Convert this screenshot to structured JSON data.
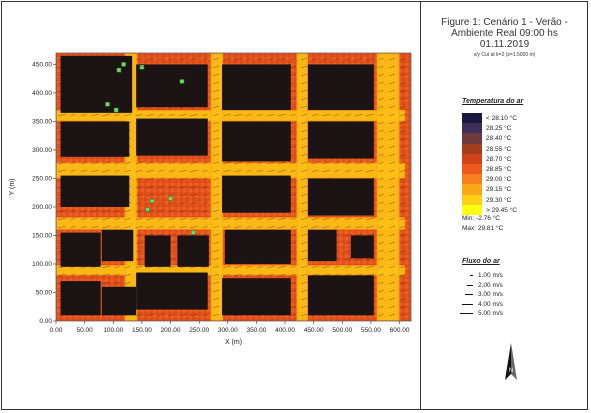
{
  "figure": {
    "title_lines": [
      "Figure 1: Cenário 1 - Verão -",
      "Ambiente Real 09:00 hs",
      "01.11.2019"
    ],
    "subtitle": "x/y Cut at k=2 (z=1.5000 m)"
  },
  "legend_temperature": {
    "title": "Temperatura do ar",
    "entries": [
      {
        "label": "< 28.10 °C",
        "color": "#1a1a40"
      },
      {
        "label": "28.25 °C",
        "color": "#3e2f5a"
      },
      {
        "label": "28.40 °C",
        "color": "#6e3a3e"
      },
      {
        "label": "28.55 °C",
        "color": "#a43c1e"
      },
      {
        "label": "28.70 °C",
        "color": "#d2431a"
      },
      {
        "label": "28.85 °C",
        "color": "#ee5a1e"
      },
      {
        "label": "29.00 °C",
        "color": "#f8801c"
      },
      {
        "label": "29.15 °C",
        "color": "#fba818"
      },
      {
        "label": "29.30 °C",
        "color": "#fdd014"
      },
      {
        "label": "> 29.45 °C",
        "color": "#ffff10"
      }
    ],
    "min_label": "Min: -2.76 °C",
    "max_label": "Max: 29.81 °C"
  },
  "legend_wind": {
    "title": "Fluxo do ar",
    "entries": [
      "1.00 m/s",
      "2.00 m/s",
      "3.00 m/s",
      "4.00 m/s",
      "5.00 m/s"
    ]
  },
  "compass": {
    "label": "N",
    "icon": "north-arrow-icon"
  },
  "chart_data": {
    "type": "heatmap",
    "xlabel": "X (m)",
    "ylabel": "Y (m)",
    "xlim": [
      0,
      620
    ],
    "ylim": [
      0,
      470
    ],
    "x_ticks": [
      "0.00",
      "50.00",
      "100.00",
      "150.00",
      "200.00",
      "250.00",
      "300.00",
      "350.00",
      "400.00",
      "450.00",
      "500.00",
      "550.00",
      "600.00"
    ],
    "y_ticks": [
      "0.00",
      "50.00",
      "100.00",
      "150.00",
      "200.00",
      "250.00",
      "300.00",
      "350.00",
      "400.00",
      "450.00"
    ],
    "x_tick_values": [
      0,
      50,
      100,
      150,
      200,
      250,
      300,
      350,
      400,
      450,
      500,
      550,
      600
    ],
    "y_tick_values": [
      0,
      50,
      100,
      150,
      200,
      250,
      300,
      350,
      400,
      450
    ],
    "buildings": [
      [
        8,
        10,
        70,
        60
      ],
      [
        80,
        10,
        60,
        50
      ],
      [
        8,
        95,
        70,
        60
      ],
      [
        80,
        105,
        55,
        55
      ],
      [
        8,
        200,
        120,
        55
      ],
      [
        8,
        288,
        120,
        62
      ],
      [
        8,
        365,
        125,
        100
      ],
      [
        140,
        20,
        125,
        65
      ],
      [
        155,
        95,
        45,
        55
      ],
      [
        212,
        95,
        55,
        55
      ],
      [
        140,
        290,
        125,
        65
      ],
      [
        140,
        375,
        125,
        75
      ],
      [
        290,
        10,
        120,
        65
      ],
      [
        295,
        100,
        115,
        60
      ],
      [
        290,
        190,
        120,
        65
      ],
      [
        290,
        280,
        120,
        70
      ],
      [
        290,
        370,
        120,
        80
      ],
      [
        440,
        10,
        115,
        70
      ],
      [
        440,
        105,
        50,
        55
      ],
      [
        515,
        110,
        40,
        40
      ],
      [
        440,
        185,
        115,
        65
      ],
      [
        440,
        285,
        115,
        65
      ],
      [
        440,
        370,
        115,
        80
      ]
    ],
    "hot_streets": [
      [
        0,
        350,
        610,
        20
      ],
      [
        0,
        250,
        610,
        28
      ],
      [
        0,
        160,
        610,
        22
      ],
      [
        0,
        80,
        610,
        18
      ],
      [
        120,
        0,
        22,
        470
      ],
      [
        270,
        0,
        22,
        470
      ],
      [
        420,
        0,
        20,
        470
      ],
      [
        560,
        0,
        40,
        470
      ]
    ],
    "cool_zone": [
      10,
      370,
      60,
      90
    ],
    "vegetation": [
      [
        110,
        440
      ],
      [
        150,
        445
      ],
      [
        118,
        450
      ],
      [
        220,
        420
      ],
      [
        160,
        195
      ],
      [
        168,
        210
      ],
      [
        200,
        215
      ],
      [
        240,
        155
      ],
      [
        90,
        380
      ],
      [
        105,
        370
      ]
    ],
    "wind_direction_deg": -10
  }
}
